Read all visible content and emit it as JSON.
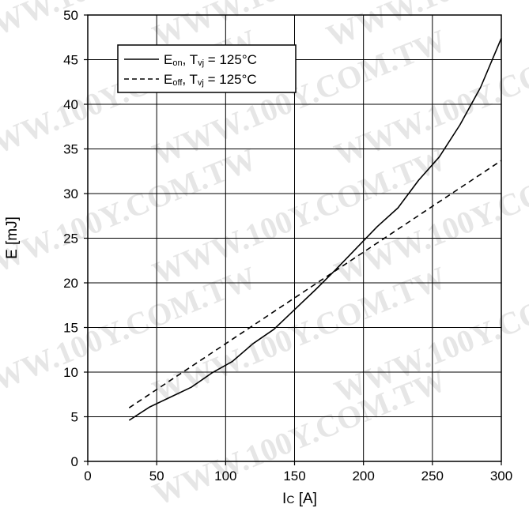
{
  "watermark": "WWW.100Y.COM.TW",
  "chart_data": {
    "type": "line",
    "xlabel": "I",
    "xlabel_sub": "C",
    "xlabel_unit": " [A]",
    "ylabel": "E [mJ]",
    "xlim": [
      0,
      300
    ],
    "ylim": [
      0,
      50
    ],
    "x_ticks": [
      0,
      50,
      100,
      150,
      200,
      250,
      300
    ],
    "y_ticks": [
      0,
      5,
      10,
      15,
      20,
      25,
      30,
      35,
      40,
      45,
      50
    ],
    "grid": true,
    "legend_position": "top-left",
    "series": [
      {
        "name": "E_on, T_vj = 125°C",
        "legend": {
          "main": "E",
          "sub": "on",
          "mid": ", T",
          "sub2": "vj",
          "tail": " = 125°C"
        },
        "style": "solid",
        "color": "#000000",
        "x": [
          30,
          45,
          60,
          75,
          90,
          105,
          120,
          135,
          150,
          165,
          180,
          195,
          210,
          225,
          240,
          255,
          270,
          285,
          300
        ],
        "y": [
          4.6,
          6.1,
          7.2,
          8.3,
          9.9,
          11.2,
          13.2,
          14.8,
          17.0,
          19.2,
          21.5,
          23.9,
          26.3,
          28.4,
          31.5,
          34.1,
          37.7,
          41.9,
          47.4
        ]
      },
      {
        "name": "E_off, T_vj = 125°C",
        "legend": {
          "main": "E",
          "sub": "off",
          "mid": ", T",
          "sub2": "vj",
          "tail": " = 125°C"
        },
        "style": "dashed",
        "color": "#000000",
        "x": [
          30,
          300
        ],
        "y": [
          6.0,
          33.7
        ]
      }
    ]
  }
}
